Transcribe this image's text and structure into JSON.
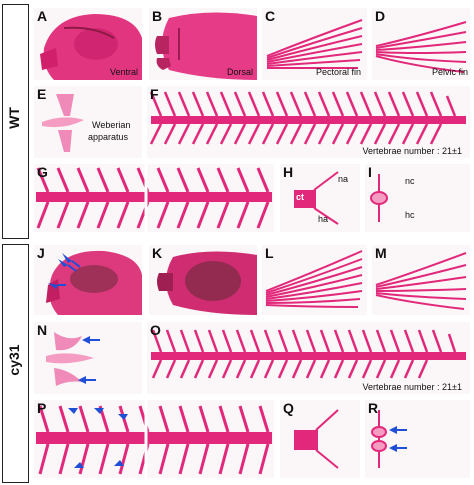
{
  "groups": {
    "wt": "WT",
    "mutant": "cy31"
  },
  "panels": {
    "A": {
      "letter": "A",
      "caption": "Ventral"
    },
    "B": {
      "letter": "B",
      "caption": "Dorsal"
    },
    "C": {
      "letter": "C",
      "caption": "Pectoral fin"
    },
    "D": {
      "letter": "D",
      "caption": "Pelvic fin"
    },
    "E": {
      "letter": "E",
      "caption_line1": "Weberian",
      "caption_line2": "apparatus"
    },
    "F": {
      "letter": "F",
      "caption": "Vertebrae number : 21±1"
    },
    "G": {
      "letter": "G"
    },
    "H": {
      "letter": "H",
      "na": "na",
      "ct": "ct",
      "ha": "ha"
    },
    "I": {
      "letter": "I",
      "nc": "nc",
      "hc": "hc"
    },
    "J": {
      "letter": "J"
    },
    "K": {
      "letter": "K"
    },
    "L": {
      "letter": "L"
    },
    "M": {
      "letter": "M"
    },
    "N": {
      "letter": "N"
    },
    "O": {
      "letter": "O",
      "caption": "Vertebrae number : 21±1"
    },
    "P": {
      "letter": "P"
    },
    "Q": {
      "letter": "Q"
    },
    "R": {
      "letter": "R"
    }
  },
  "colors": {
    "stain": "#e0287a",
    "stain_light": "#f07ab0",
    "arrow": "#1f4fd6",
    "dark": "#6b2a3a"
  }
}
